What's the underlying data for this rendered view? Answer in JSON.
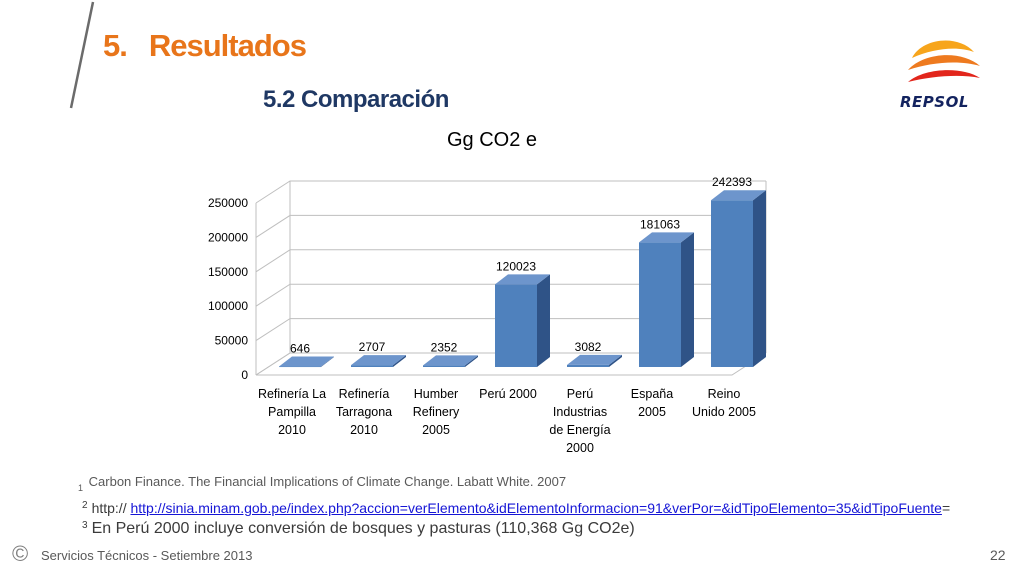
{
  "header": {
    "number": "5.",
    "title": "Resultados",
    "subtitle": "5.2  Comparación",
    "logo_text": "REPSOL"
  },
  "colors": {
    "title": "#e8751a",
    "subtitle": "#1f3864",
    "bar_front": "#4f81bd",
    "bar_side": "#2f5387",
    "bar_top": "#6d95cc"
  },
  "chart_data": {
    "type": "bar",
    "title": "Gg CO2 e",
    "categories": [
      [
        "Refinería La",
        "Pampilla",
        "2010"
      ],
      [
        "Refinería",
        "Tarragona",
        "2010"
      ],
      [
        "Humber",
        "Refinery",
        "2005"
      ],
      [
        "Perú 2000"
      ],
      [
        "Perú",
        "Industrias",
        "de Energía",
        "2000"
      ],
      [
        "España",
        "2005"
      ],
      [
        "Reino",
        "Unido 2005"
      ]
    ],
    "values": [
      646,
      2707,
      2352,
      120023,
      3082,
      181063,
      242393
    ],
    "data_labels": [
      "646",
      "2707",
      "2352",
      "120023",
      "3082",
      "181063",
      "242393"
    ],
    "yticks": [
      "0",
      "50000",
      "100000",
      "150000",
      "200000",
      "250000"
    ],
    "ylim": [
      0,
      250000
    ],
    "grid": true,
    "style": "3d"
  },
  "notes": {
    "n1_sup": "1",
    "n1_text": "Carbon Finance. The Financial Implications of Climate Change. Labatt White. 2007",
    "n2_sup": "2",
    "n2_prefix": "http://",
    "n2_link": "http://sinia.minam.gob.pe/index.php?accion=verElemento&idElementoInformacion=91&verPor=&idTipoElemento=35&idTipoFuente",
    "n2_suffix": "=",
    "n3_sup": "3",
    "n3_text": "En Perú 2000 incluye conversión de bosques y pasturas (110,368 Gg CO2e)"
  },
  "footer": {
    "copyright": "©",
    "text": "Servicios Técnicos -  Setiembre 2013",
    "page": "22"
  }
}
